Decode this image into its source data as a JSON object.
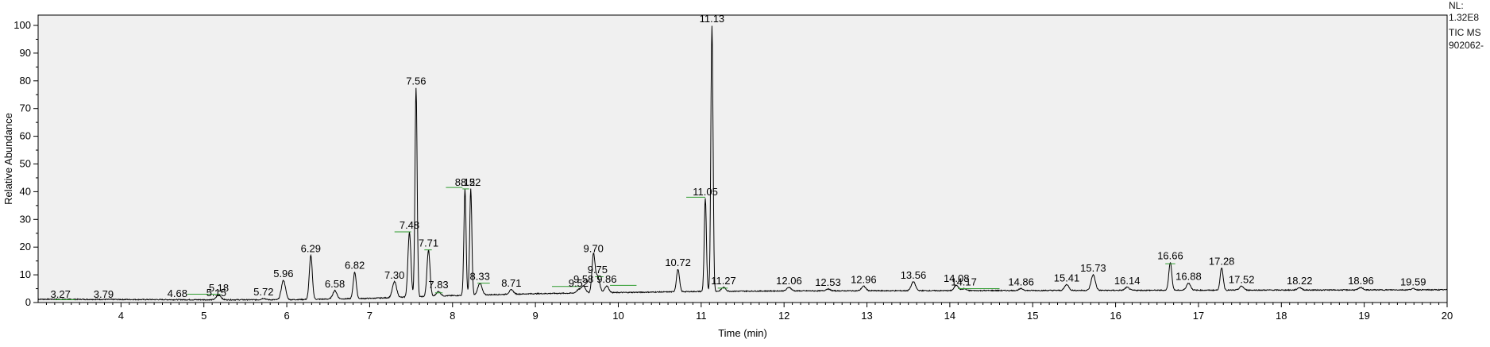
{
  "chart_data": {
    "type": "line",
    "xlabel": "Time (min)",
    "ylabel": "Relative Abundance",
    "xlim": [
      3.0,
      20.0
    ],
    "ylim": [
      0,
      100
    ],
    "xticks": [
      4,
      5,
      6,
      7,
      8,
      9,
      10,
      11,
      12,
      13,
      14,
      15,
      16,
      17,
      18,
      19,
      20
    ],
    "yticks": [
      0,
      10,
      20,
      30,
      40,
      50,
      60,
      70,
      80,
      90,
      100
    ],
    "grid": false,
    "baseline": [
      [
        3.0,
        1.2
      ],
      [
        5.0,
        1.0
      ],
      [
        6.0,
        1.0
      ],
      [
        7.0,
        1.5
      ],
      [
        8.0,
        2.5
      ],
      [
        9.0,
        3.2
      ],
      [
        10.0,
        3.6
      ],
      [
        11.0,
        4.0
      ],
      [
        12.0,
        4.2
      ],
      [
        14.0,
        4.3
      ],
      [
        16.0,
        4.4
      ],
      [
        18.0,
        4.5
      ],
      [
        20.0,
        4.6
      ]
    ],
    "peaks": [
      {
        "label": "3.27",
        "x": 3.27,
        "y": 0.6
      },
      {
        "label": "3.79",
        "x": 3.79,
        "y": 0.6
      },
      {
        "label": "4.68",
        "x": 4.68,
        "y": 0.9
      },
      {
        "label": "5.15",
        "x": 5.15,
        "y": 1.1
      },
      {
        "label": "5.18",
        "x": 5.18,
        "y": 2.9
      },
      {
        "label": "5.72",
        "x": 5.72,
        "y": 1.5
      },
      {
        "label": "5.96",
        "x": 5.96,
        "y": 8.0
      },
      {
        "label": "6.29",
        "x": 6.29,
        "y": 17.0
      },
      {
        "label": "6.58",
        "x": 6.58,
        "y": 4.3
      },
      {
        "label": "6.82",
        "x": 6.82,
        "y": 11.0
      },
      {
        "label": "7.30",
        "x": 7.3,
        "y": 7.5
      },
      {
        "label": "7.48",
        "x": 7.48,
        "y": 25.5
      },
      {
        "label": "7.56",
        "x": 7.56,
        "y": 77.5
      },
      {
        "label": "7.71",
        "x": 7.71,
        "y": 19.0
      },
      {
        "label": "7.83",
        "x": 7.83,
        "y": 4.0
      },
      {
        "label": "8.15",
        "x": 8.15,
        "y": 41.0
      },
      {
        "label": "8.22",
        "x": 8.22,
        "y": 41.0
      },
      {
        "label": "8.33",
        "x": 8.33,
        "y": 7.0
      },
      {
        "label": "8.71",
        "x": 8.71,
        "y": 4.6
      },
      {
        "label": "9.52",
        "x": 9.52,
        "y": 4.6
      },
      {
        "label": "9.58",
        "x": 9.58,
        "y": 6.0
      },
      {
        "label": "9.70",
        "x": 9.7,
        "y": 17.0
      },
      {
        "label": "9.75",
        "x": 9.75,
        "y": 9.5
      },
      {
        "label": "9.86",
        "x": 9.86,
        "y": 6.0
      },
      {
        "label": "10.72",
        "x": 10.72,
        "y": 12.0
      },
      {
        "label": "11.05",
        "x": 11.05,
        "y": 37.5
      },
      {
        "label": "11.13",
        "x": 11.13,
        "y": 100
      },
      {
        "label": "11.27",
        "x": 11.27,
        "y": 5.5
      },
      {
        "label": "12.06",
        "x": 12.06,
        "y": 5.5
      },
      {
        "label": "12.53",
        "x": 12.53,
        "y": 4.9
      },
      {
        "label": "12.96",
        "x": 12.96,
        "y": 5.9
      },
      {
        "label": "13.56",
        "x": 13.56,
        "y": 7.5
      },
      {
        "label": "14.08",
        "x": 14.08,
        "y": 6.3
      },
      {
        "label": "14.17",
        "x": 14.17,
        "y": 5.0
      },
      {
        "label": "14.86",
        "x": 14.86,
        "y": 5.0
      },
      {
        "label": "15.41",
        "x": 15.41,
        "y": 6.5
      },
      {
        "label": "15.73",
        "x": 15.73,
        "y": 10.0
      },
      {
        "label": "16.14",
        "x": 16.14,
        "y": 5.5
      },
      {
        "label": "16.66",
        "x": 16.66,
        "y": 14.5
      },
      {
        "label": "16.88",
        "x": 16.88,
        "y": 7.0
      },
      {
        "label": "17.28",
        "x": 17.28,
        "y": 12.5
      },
      {
        "label": "17.52",
        "x": 17.52,
        "y": 5.9
      },
      {
        "label": "18.22",
        "x": 18.22,
        "y": 5.4
      },
      {
        "label": "18.96",
        "x": 18.96,
        "y": 5.4
      },
      {
        "label": "19.59",
        "x": 19.59,
        "y": 5.0
      }
    ],
    "integration_marks": [
      {
        "x1": 3.2,
        "x2": 3.45,
        "y": 1.0
      },
      {
        "x1": 4.8,
        "x2": 5.2,
        "y": 3.0
      },
      {
        "x1": 7.3,
        "x2": 7.5,
        "y": 25.5
      },
      {
        "x1": 7.66,
        "x2": 7.75,
        "y": 19.0
      },
      {
        "x1": 7.79,
        "x2": 7.88,
        "y": 3.5
      },
      {
        "x1": 7.92,
        "x2": 8.12,
        "y": 41.5
      },
      {
        "x1": 8.12,
        "x2": 8.2,
        "y": 41.0
      },
      {
        "x1": 8.3,
        "x2": 8.45,
        "y": 7.0
      },
      {
        "x1": 9.2,
        "x2": 9.55,
        "y": 5.8
      },
      {
        "x1": 9.72,
        "x2": 9.82,
        "y": 9.3
      },
      {
        "x1": 9.9,
        "x2": 10.22,
        "y": 6.2
      },
      {
        "x1": 10.82,
        "x2": 11.05,
        "y": 38.0
      },
      {
        "x1": 11.2,
        "x2": 11.32,
        "y": 5.2
      },
      {
        "x1": 14.1,
        "x2": 14.6,
        "y": 5.0
      },
      {
        "x1": 16.6,
        "x2": 16.72,
        "y": 14.0
      }
    ],
    "annotations": [
      "NL:",
      "1.32E8",
      "TIC  MS",
      "902062-"
    ],
    "line_color": "#000000",
    "integration_color": "#2e9b2e"
  }
}
